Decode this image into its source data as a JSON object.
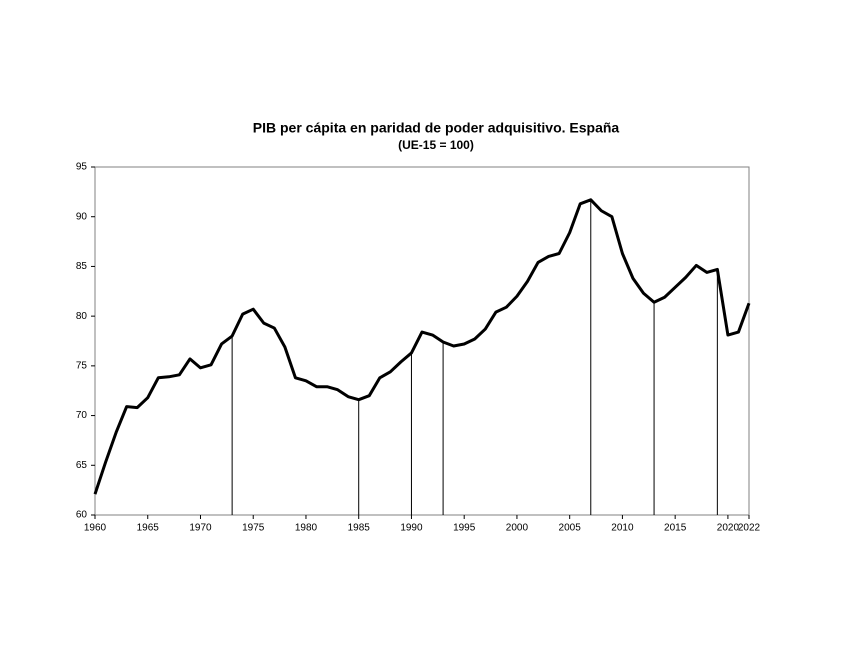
{
  "chart_data": {
    "type": "line",
    "title": "PIB per cápita en paridad de poder adquisitivo. España",
    "subtitle": "(UE-15 = 100)",
    "x": [
      1960,
      1961,
      1962,
      1963,
      1964,
      1965,
      1966,
      1967,
      1968,
      1969,
      1970,
      1971,
      1972,
      1973,
      1974,
      1975,
      1976,
      1977,
      1978,
      1979,
      1980,
      1981,
      1982,
      1983,
      1984,
      1985,
      1986,
      1987,
      1988,
      1989,
      1990,
      1991,
      1992,
      1993,
      1994,
      1995,
      1996,
      1997,
      1998,
      1999,
      2000,
      2001,
      2002,
      2003,
      2004,
      2005,
      2006,
      2007,
      2008,
      2009,
      2010,
      2011,
      2012,
      2013,
      2014,
      2015,
      2016,
      2017,
      2018,
      2019,
      2020,
      2021,
      2022
    ],
    "series": [
      {
        "name": "España",
        "color": "#000000",
        "values": [
          62.1,
          65.3,
          68.3,
          70.9,
          70.8,
          71.8,
          73.8,
          73.9,
          74.1,
          75.7,
          74.8,
          75.1,
          77.2,
          78.0,
          80.2,
          80.7,
          79.3,
          78.8,
          76.9,
          73.8,
          73.5,
          72.9,
          72.9,
          72.6,
          71.9,
          71.6,
          72.0,
          73.8,
          74.4,
          75.4,
          76.3,
          78.4,
          78.1,
          77.4,
          77.0,
          77.2,
          77.7,
          78.7,
          80.4,
          80.9,
          82.0,
          83.5,
          85.4,
          86.0,
          86.3,
          88.4,
          91.3,
          91.7,
          90.6,
          90.0,
          86.3,
          83.8,
          82.3,
          81.4,
          81.9,
          82.9,
          83.9,
          85.1,
          84.4,
          84.7,
          78.1,
          78.4,
          81.3
        ]
      }
    ],
    "reference_years": [
      1973,
      1985,
      1990,
      1993,
      2007,
      2013,
      2019
    ],
    "xlim": [
      1960,
      2022
    ],
    "xticks": [
      1960,
      1965,
      1970,
      1975,
      1980,
      1985,
      1990,
      1995,
      2000,
      2005,
      2010,
      2015,
      2020,
      2022
    ],
    "ylim": [
      60,
      95
    ],
    "yticks": [
      60,
      65,
      70,
      75,
      80,
      85,
      90,
      95
    ]
  }
}
